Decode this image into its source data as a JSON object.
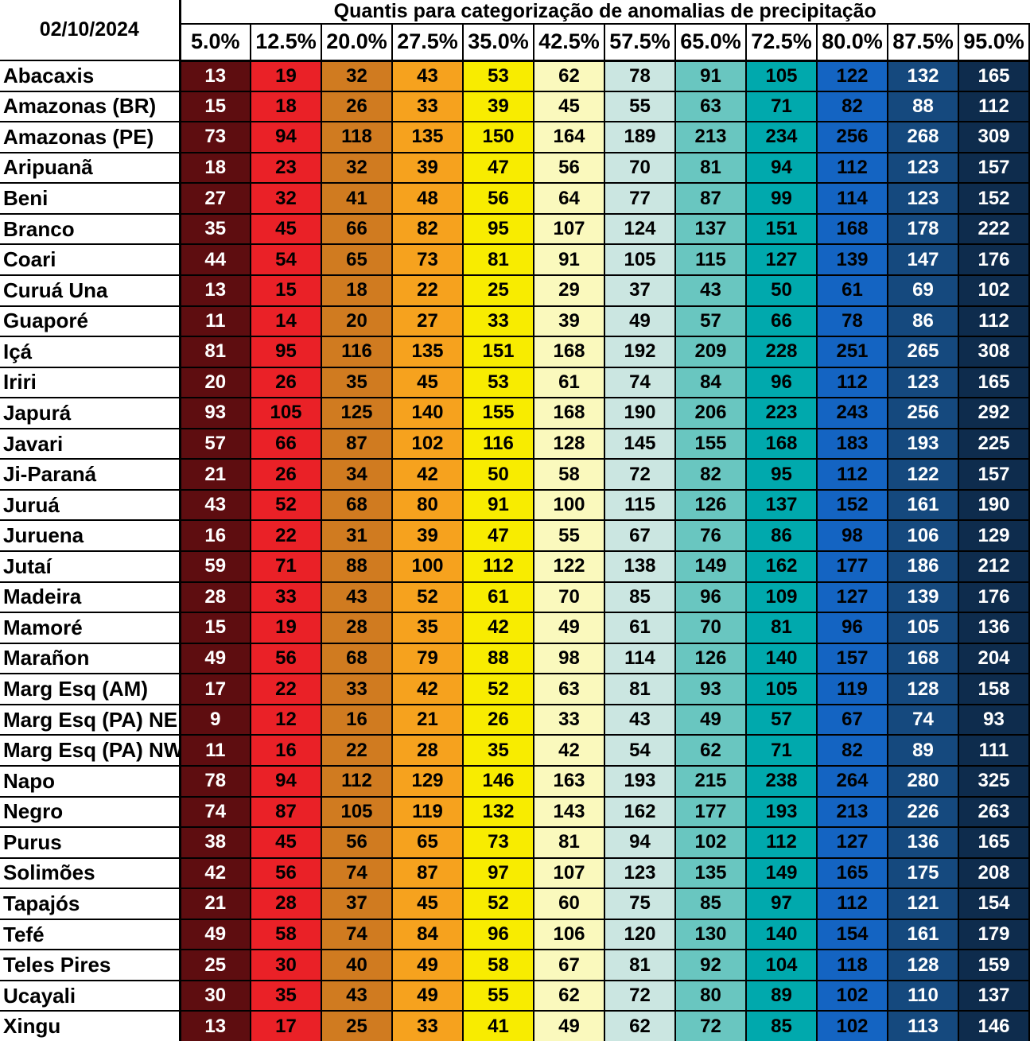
{
  "header": {
    "date": "02/10/2024",
    "title": "Quantis para categorização de anomalias de precipitação"
  },
  "chart_data": {
    "type": "table",
    "subtype": "quantile-heatmap-table",
    "title": "Quantis para categorização de anomalias de precipitação",
    "date_label": "02/10/2024",
    "columns": [
      "5.0%",
      "12.5%",
      "20.0%",
      "27.5%",
      "35.0%",
      "42.5%",
      "57.5%",
      "65.0%",
      "72.5%",
      "80.0%",
      "87.5%",
      "95.0%"
    ],
    "column_colors": [
      "#5E0D10",
      "#EA2127",
      "#D07B20",
      "#F6A21E",
      "#F8EC00",
      "#FAF9BD",
      "#CBE6E1",
      "#69C6C0",
      "#00A9AD",
      "#1464C2",
      "#15497E",
      "#0E2C4D"
    ],
    "column_text_colors": [
      "#FFFFFF",
      "#000000",
      "#000000",
      "#000000",
      "#000000",
      "#000000",
      "#000000",
      "#000000",
      "#000000",
      "#000000",
      "#FFFFFF",
      "#FFFFFF"
    ],
    "rows": [
      {
        "label": "Abacaxis",
        "values": [
          13,
          19,
          32,
          43,
          53,
          62,
          78,
          91,
          105,
          122,
          132,
          165
        ]
      },
      {
        "label": "Amazonas (BR)",
        "values": [
          15,
          18,
          26,
          33,
          39,
          45,
          55,
          63,
          71,
          82,
          88,
          112
        ]
      },
      {
        "label": "Amazonas (PE)",
        "values": [
          73,
          94,
          118,
          135,
          150,
          164,
          189,
          213,
          234,
          256,
          268,
          309
        ]
      },
      {
        "label": "Aripuanã",
        "values": [
          18,
          23,
          32,
          39,
          47,
          56,
          70,
          81,
          94,
          112,
          123,
          157
        ]
      },
      {
        "label": "Beni",
        "values": [
          27,
          32,
          41,
          48,
          56,
          64,
          77,
          87,
          99,
          114,
          123,
          152
        ]
      },
      {
        "label": "Branco",
        "values": [
          35,
          45,
          66,
          82,
          95,
          107,
          124,
          137,
          151,
          168,
          178,
          222
        ]
      },
      {
        "label": "Coari",
        "values": [
          44,
          54,
          65,
          73,
          81,
          91,
          105,
          115,
          127,
          139,
          147,
          176
        ]
      },
      {
        "label": "Curuá Una",
        "values": [
          13,
          15,
          18,
          22,
          25,
          29,
          37,
          43,
          50,
          61,
          69,
          102
        ]
      },
      {
        "label": "Guaporé",
        "values": [
          11,
          14,
          20,
          27,
          33,
          39,
          49,
          57,
          66,
          78,
          86,
          112
        ]
      },
      {
        "label": "Içá",
        "values": [
          81,
          95,
          116,
          135,
          151,
          168,
          192,
          209,
          228,
          251,
          265,
          308
        ]
      },
      {
        "label": "Iriri",
        "values": [
          20,
          26,
          35,
          45,
          53,
          61,
          74,
          84,
          96,
          112,
          123,
          165
        ]
      },
      {
        "label": "Japurá",
        "values": [
          93,
          105,
          125,
          140,
          155,
          168,
          190,
          206,
          223,
          243,
          256,
          292
        ]
      },
      {
        "label": "Javari",
        "values": [
          57,
          66,
          87,
          102,
          116,
          128,
          145,
          155,
          168,
          183,
          193,
          225
        ]
      },
      {
        "label": "Ji-Paraná",
        "values": [
          21,
          26,
          34,
          42,
          50,
          58,
          72,
          82,
          95,
          112,
          122,
          157
        ]
      },
      {
        "label": "Juruá",
        "values": [
          43,
          52,
          68,
          80,
          91,
          100,
          115,
          126,
          137,
          152,
          161,
          190
        ]
      },
      {
        "label": "Juruena",
        "values": [
          16,
          22,
          31,
          39,
          47,
          55,
          67,
          76,
          86,
          98,
          106,
          129
        ]
      },
      {
        "label": "Jutaí",
        "values": [
          59,
          71,
          88,
          100,
          112,
          122,
          138,
          149,
          162,
          177,
          186,
          212
        ]
      },
      {
        "label": "Madeira",
        "values": [
          28,
          33,
          43,
          52,
          61,
          70,
          85,
          96,
          109,
          127,
          139,
          176
        ]
      },
      {
        "label": "Mamoré",
        "values": [
          15,
          19,
          28,
          35,
          42,
          49,
          61,
          70,
          81,
          96,
          105,
          136
        ]
      },
      {
        "label": "Marañon",
        "values": [
          49,
          56,
          68,
          79,
          88,
          98,
          114,
          126,
          140,
          157,
          168,
          204
        ]
      },
      {
        "label": "Marg Esq (AM)",
        "values": [
          17,
          22,
          33,
          42,
          52,
          63,
          81,
          93,
          105,
          119,
          128,
          158
        ]
      },
      {
        "label": "Marg Esq (PA) NE",
        "values": [
          9,
          12,
          16,
          21,
          26,
          33,
          43,
          49,
          57,
          67,
          74,
          93
        ]
      },
      {
        "label": "Marg Esq (PA) NW",
        "values": [
          11,
          16,
          22,
          28,
          35,
          42,
          54,
          62,
          71,
          82,
          89,
          111
        ]
      },
      {
        "label": "Napo",
        "values": [
          78,
          94,
          112,
          129,
          146,
          163,
          193,
          215,
          238,
          264,
          280,
          325
        ]
      },
      {
        "label": "Negro",
        "values": [
          74,
          87,
          105,
          119,
          132,
          143,
          162,
          177,
          193,
          213,
          226,
          263
        ]
      },
      {
        "label": "Purus",
        "values": [
          38,
          45,
          56,
          65,
          73,
          81,
          94,
          102,
          112,
          127,
          136,
          165
        ]
      },
      {
        "label": "Solimões",
        "values": [
          42,
          56,
          74,
          87,
          97,
          107,
          123,
          135,
          149,
          165,
          175,
          208
        ]
      },
      {
        "label": "Tapajós",
        "values": [
          21,
          28,
          37,
          45,
          52,
          60,
          75,
          85,
          97,
          112,
          121,
          154
        ]
      },
      {
        "label": "Tefé",
        "values": [
          49,
          58,
          74,
          84,
          96,
          106,
          120,
          130,
          140,
          154,
          161,
          179
        ]
      },
      {
        "label": "Teles Pires",
        "values": [
          25,
          30,
          40,
          49,
          58,
          67,
          81,
          92,
          104,
          118,
          128,
          159
        ]
      },
      {
        "label": "Ucayali",
        "values": [
          30,
          35,
          43,
          49,
          55,
          62,
          72,
          80,
          89,
          102,
          110,
          137
        ]
      },
      {
        "label": "Xingu",
        "values": [
          13,
          17,
          25,
          33,
          41,
          49,
          62,
          72,
          85,
          102,
          113,
          146
        ]
      }
    ]
  }
}
